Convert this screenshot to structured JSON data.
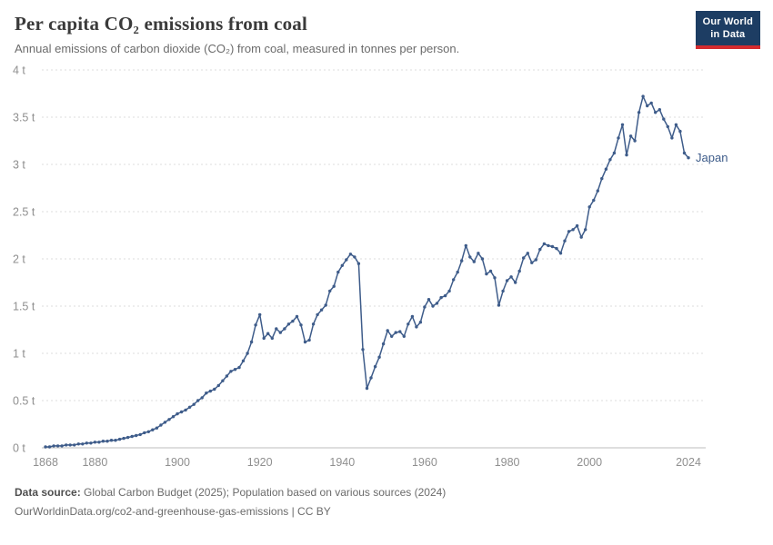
{
  "header": {
    "title": "Per capita CO₂ emissions from coal",
    "subtitle": "Annual emissions of carbon dioxide (CO₂) from coal, measured in tonnes per person.",
    "logo": {
      "line1": "Our World",
      "line2": "in Data",
      "bg_color": "#1d3d63",
      "accent_color": "#d42b2f"
    }
  },
  "chart_data": {
    "type": "line",
    "title": "Per capita CO₂ emissions from coal",
    "subtitle": "Annual emissions of carbon dioxide (CO₂) from coal, measured in tonnes per person.",
    "unit": "tonnes per person",
    "xlabel": "",
    "ylabel": "",
    "ylim": [
      0,
      4
    ],
    "x_range": [
      1868,
      2024
    ],
    "grid": "horizontal-dashed",
    "legend_position": "end-of-line-label",
    "markers": true,
    "y_ticks": [
      {
        "value": 0,
        "label": "0 t"
      },
      {
        "value": 0.5,
        "label": "0.5 t"
      },
      {
        "value": 1,
        "label": "1 t"
      },
      {
        "value": 1.5,
        "label": "1.5 t"
      },
      {
        "value": 2,
        "label": "2 t"
      },
      {
        "value": 2.5,
        "label": "2.5 t"
      },
      {
        "value": 3,
        "label": "3 t"
      },
      {
        "value": 3.5,
        "label": "3.5 t"
      },
      {
        "value": 4,
        "label": "4 t"
      }
    ],
    "x_ticks": [
      1868,
      1880,
      1900,
      1920,
      1940,
      1960,
      1980,
      2000,
      2024
    ],
    "series": [
      {
        "name": "Japan",
        "color": "#3e5c8a",
        "points": [
          [
            1868,
            0.01
          ],
          [
            1869,
            0.01
          ],
          [
            1870,
            0.02
          ],
          [
            1871,
            0.02
          ],
          [
            1872,
            0.02
          ],
          [
            1873,
            0.03
          ],
          [
            1874,
            0.03
          ],
          [
            1875,
            0.03
          ],
          [
            1876,
            0.04
          ],
          [
            1877,
            0.04
          ],
          [
            1878,
            0.05
          ],
          [
            1879,
            0.05
          ],
          [
            1880,
            0.06
          ],
          [
            1881,
            0.06
          ],
          [
            1882,
            0.07
          ],
          [
            1883,
            0.07
          ],
          [
            1884,
            0.08
          ],
          [
            1885,
            0.08
          ],
          [
            1886,
            0.09
          ],
          [
            1887,
            0.1
          ],
          [
            1888,
            0.11
          ],
          [
            1889,
            0.12
          ],
          [
            1890,
            0.13
          ],
          [
            1891,
            0.14
          ],
          [
            1892,
            0.16
          ],
          [
            1893,
            0.17
          ],
          [
            1894,
            0.19
          ],
          [
            1895,
            0.21
          ],
          [
            1896,
            0.24
          ],
          [
            1897,
            0.27
          ],
          [
            1898,
            0.3
          ],
          [
            1899,
            0.33
          ],
          [
            1900,
            0.36
          ],
          [
            1901,
            0.38
          ],
          [
            1902,
            0.4
          ],
          [
            1903,
            0.43
          ],
          [
            1904,
            0.46
          ],
          [
            1905,
            0.5
          ],
          [
            1906,
            0.53
          ],
          [
            1907,
            0.58
          ],
          [
            1908,
            0.6
          ],
          [
            1909,
            0.62
          ],
          [
            1910,
            0.66
          ],
          [
            1911,
            0.71
          ],
          [
            1912,
            0.76
          ],
          [
            1913,
            0.81
          ],
          [
            1914,
            0.83
          ],
          [
            1915,
            0.85
          ],
          [
            1916,
            0.92
          ],
          [
            1917,
            1.0
          ],
          [
            1918,
            1.12
          ],
          [
            1919,
            1.3
          ],
          [
            1920,
            1.41
          ],
          [
            1921,
            1.16
          ],
          [
            1922,
            1.21
          ],
          [
            1923,
            1.16
          ],
          [
            1924,
            1.26
          ],
          [
            1925,
            1.22
          ],
          [
            1926,
            1.26
          ],
          [
            1927,
            1.31
          ],
          [
            1928,
            1.34
          ],
          [
            1929,
            1.39
          ],
          [
            1930,
            1.3
          ],
          [
            1931,
            1.12
          ],
          [
            1932,
            1.14
          ],
          [
            1933,
            1.31
          ],
          [
            1934,
            1.41
          ],
          [
            1935,
            1.46
          ],
          [
            1936,
            1.51
          ],
          [
            1937,
            1.66
          ],
          [
            1938,
            1.71
          ],
          [
            1939,
            1.86
          ],
          [
            1940,
            1.93
          ],
          [
            1941,
            1.99
          ],
          [
            1942,
            2.05
          ],
          [
            1943,
            2.02
          ],
          [
            1944,
            1.95
          ],
          [
            1945,
            1.04
          ],
          [
            1946,
            0.63
          ],
          [
            1947,
            0.74
          ],
          [
            1948,
            0.86
          ],
          [
            1949,
            0.96
          ],
          [
            1950,
            1.1
          ],
          [
            1951,
            1.24
          ],
          [
            1952,
            1.18
          ],
          [
            1953,
            1.22
          ],
          [
            1954,
            1.23
          ],
          [
            1955,
            1.18
          ],
          [
            1956,
            1.31
          ],
          [
            1957,
            1.39
          ],
          [
            1958,
            1.28
          ],
          [
            1959,
            1.33
          ],
          [
            1960,
            1.49
          ],
          [
            1961,
            1.57
          ],
          [
            1962,
            1.5
          ],
          [
            1963,
            1.53
          ],
          [
            1964,
            1.59
          ],
          [
            1965,
            1.61
          ],
          [
            1966,
            1.66
          ],
          [
            1967,
            1.78
          ],
          [
            1968,
            1.86
          ],
          [
            1969,
            1.98
          ],
          [
            1970,
            2.14
          ],
          [
            1971,
            2.02
          ],
          [
            1972,
            1.97
          ],
          [
            1973,
            2.06
          ],
          [
            1974,
            2.0
          ],
          [
            1975,
            1.84
          ],
          [
            1976,
            1.87
          ],
          [
            1977,
            1.8
          ],
          [
            1978,
            1.51
          ],
          [
            1979,
            1.66
          ],
          [
            1980,
            1.77
          ],
          [
            1981,
            1.81
          ],
          [
            1982,
            1.75
          ],
          [
            1983,
            1.87
          ],
          [
            1984,
            2.01
          ],
          [
            1985,
            2.06
          ],
          [
            1986,
            1.96
          ],
          [
            1987,
            1.99
          ],
          [
            1988,
            2.1
          ],
          [
            1989,
            2.16
          ],
          [
            1990,
            2.14
          ],
          [
            1991,
            2.13
          ],
          [
            1992,
            2.11
          ],
          [
            1993,
            2.06
          ],
          [
            1994,
            2.19
          ],
          [
            1995,
            2.29
          ],
          [
            1996,
            2.31
          ],
          [
            1997,
            2.35
          ],
          [
            1998,
            2.23
          ],
          [
            1999,
            2.31
          ],
          [
            2000,
            2.55
          ],
          [
            2001,
            2.62
          ],
          [
            2002,
            2.72
          ],
          [
            2003,
            2.85
          ],
          [
            2004,
            2.95
          ],
          [
            2005,
            3.05
          ],
          [
            2006,
            3.12
          ],
          [
            2007,
            3.28
          ],
          [
            2008,
            3.42
          ],
          [
            2009,
            3.1
          ],
          [
            2010,
            3.3
          ],
          [
            2011,
            3.25
          ],
          [
            2012,
            3.55
          ],
          [
            2013,
            3.72
          ],
          [
            2014,
            3.62
          ],
          [
            2015,
            3.65
          ],
          [
            2016,
            3.55
          ],
          [
            2017,
            3.58
          ],
          [
            2018,
            3.48
          ],
          [
            2019,
            3.4
          ],
          [
            2020,
            3.28
          ],
          [
            2021,
            3.42
          ],
          [
            2022,
            3.35
          ],
          [
            2023,
            3.12
          ],
          [
            2024,
            3.07
          ]
        ]
      }
    ]
  },
  "footer": {
    "source_label": "Data source:",
    "source_text": " Global Carbon Budget (2025); Population based on various sources (2024)",
    "link_line": "OurWorldinData.org/co2-and-greenhouse-gas-emissions | CC BY"
  },
  "colors": {
    "line": "#3e5c8a",
    "grid": "#dedede",
    "axis_text": "#8f8f8f",
    "title_text": "#3a3a3a"
  }
}
